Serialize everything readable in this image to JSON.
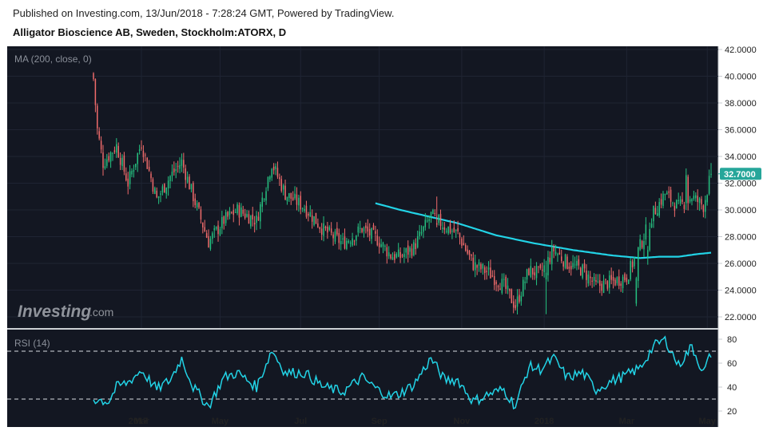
{
  "header": {
    "published": "Published on Investing.com, 13/Jun/2018 - 7:28:24 GMT, Powered by TradingView.",
    "symbol": "Alligator Bioscience AB, Sweden, Stockholm:ATORX, D"
  },
  "logo": {
    "main": "Investing",
    "suffix": ".com"
  },
  "chart_data": [
    {
      "type": "candlestick",
      "indicator_label": "MA (200, close, 0)",
      "y_ticks": [
        "42.0000",
        "40.0000",
        "38.0000",
        "36.0000",
        "34.0000",
        "32.0000",
        "30.0000",
        "28.0000",
        "26.0000",
        "24.0000",
        "22.0000"
      ],
      "ylim": [
        21.3,
        42.3
      ],
      "x_ticks": [
        "2017",
        "Mar",
        "May",
        "Jul",
        "Sep",
        "Nov",
        "2018",
        "Mar",
        "May"
      ],
      "last_price": "32.7000",
      "last_price_value": 32.7,
      "colors": {
        "up": "#26c281",
        "down": "#ef6b6b",
        "ma": "#22d3e6",
        "background": "#131722",
        "last_badge": "#26a69a"
      },
      "close_keypoints": [
        [
          0,
          39.8
        ],
        [
          2,
          36.0
        ],
        [
          5,
          33.5
        ],
        [
          12,
          34.8
        ],
        [
          18,
          32.0
        ],
        [
          25,
          35.0
        ],
        [
          33,
          30.8
        ],
        [
          40,
          32.5
        ],
        [
          46,
          33.6
        ],
        [
          52,
          31.0
        ],
        [
          60,
          27.6
        ],
        [
          68,
          29.2
        ],
        [
          75,
          30.0
        ],
        [
          85,
          29.2
        ],
        [
          93,
          33.5
        ],
        [
          100,
          31.2
        ],
        [
          110,
          30.2
        ],
        [
          120,
          28.5
        ],
        [
          130,
          27.5
        ],
        [
          140,
          28.6
        ],
        [
          148,
          27.8
        ],
        [
          155,
          26.6
        ],
        [
          160,
          26.5
        ],
        [
          167,
          27.2
        ],
        [
          176,
          29.6
        ],
        [
          183,
          28.8
        ],
        [
          190,
          28.2
        ],
        [
          198,
          25.9
        ],
        [
          206,
          25.3
        ],
        [
          214,
          24.3
        ],
        [
          220,
          22.8
        ],
        [
          227,
          25.5
        ],
        [
          233,
          25.2
        ],
        [
          240,
          27.0
        ],
        [
          247,
          26.0
        ],
        [
          255,
          25.5
        ],
        [
          262,
          24.3
        ],
        [
          270,
          24.6
        ],
        [
          278,
          25.0
        ],
        [
          285,
          27.3
        ],
        [
          292,
          29.8
        ],
        [
          298,
          31.2
        ],
        [
          305,
          30.2
        ],
        [
          312,
          31.0
        ],
        [
          318,
          30.3
        ],
        [
          322,
          32.7
        ]
      ],
      "ma_200": [
        [
          147,
          30.5
        ],
        [
          160,
          30.0
        ],
        [
          175,
          29.5
        ],
        [
          190,
          29.0
        ],
        [
          210,
          28.1
        ],
        [
          230,
          27.5
        ],
        [
          250,
          27.0
        ],
        [
          270,
          26.6
        ],
        [
          285,
          26.4
        ],
        [
          295,
          26.5
        ],
        [
          305,
          26.5
        ],
        [
          315,
          26.7
        ],
        [
          322,
          26.8
        ]
      ],
      "special_bars": [
        [
          179,
          29.0,
          31.0,
          28.7,
          28.9
        ],
        [
          236,
          24.8,
          26.2,
          22.2,
          25.3
        ],
        [
          283,
          23.0,
          25.0,
          22.8,
          24.9
        ],
        [
          289,
          26.5,
          27.3,
          25.9,
          27.0
        ],
        [
          309,
          30.5,
          33.1,
          30.0,
          32.6
        ]
      ]
    },
    {
      "type": "line",
      "indicator_label": "RSI (14)",
      "y_ticks": [
        "80",
        "60",
        "40",
        "20"
      ],
      "ylim": [
        20,
        84
      ],
      "levels": [
        70,
        30
      ],
      "rsi_keypoints": [
        [
          0,
          30
        ],
        [
          8,
          28
        ],
        [
          12,
          40
        ],
        [
          18,
          44
        ],
        [
          25,
          54
        ],
        [
          33,
          38
        ],
        [
          40,
          46
        ],
        [
          46,
          64
        ],
        [
          52,
          40
        ],
        [
          60,
          24
        ],
        [
          68,
          48
        ],
        [
          75,
          52
        ],
        [
          85,
          40
        ],
        [
          93,
          71
        ],
        [
          100,
          52
        ],
        [
          110,
          52
        ],
        [
          120,
          40
        ],
        [
          130,
          36
        ],
        [
          140,
          48
        ],
        [
          148,
          38
        ],
        [
          155,
          32
        ],
        [
          160,
          35
        ],
        [
          167,
          42
        ],
        [
          176,
          64
        ],
        [
          183,
          46
        ],
        [
          190,
          46
        ],
        [
          198,
          28
        ],
        [
          206,
          34
        ],
        [
          214,
          38
        ],
        [
          220,
          24
        ],
        [
          227,
          57
        ],
        [
          233,
          55
        ],
        [
          240,
          64
        ],
        [
          247,
          48
        ],
        [
          255,
          52
        ],
        [
          262,
          38
        ],
        [
          270,
          45
        ],
        [
          278,
          50
        ],
        [
          285,
          56
        ],
        [
          292,
          74
        ],
        [
          298,
          80
        ],
        [
          305,
          58
        ],
        [
          312,
          74
        ],
        [
          318,
          52
        ],
        [
          322,
          68
        ]
      ]
    }
  ]
}
